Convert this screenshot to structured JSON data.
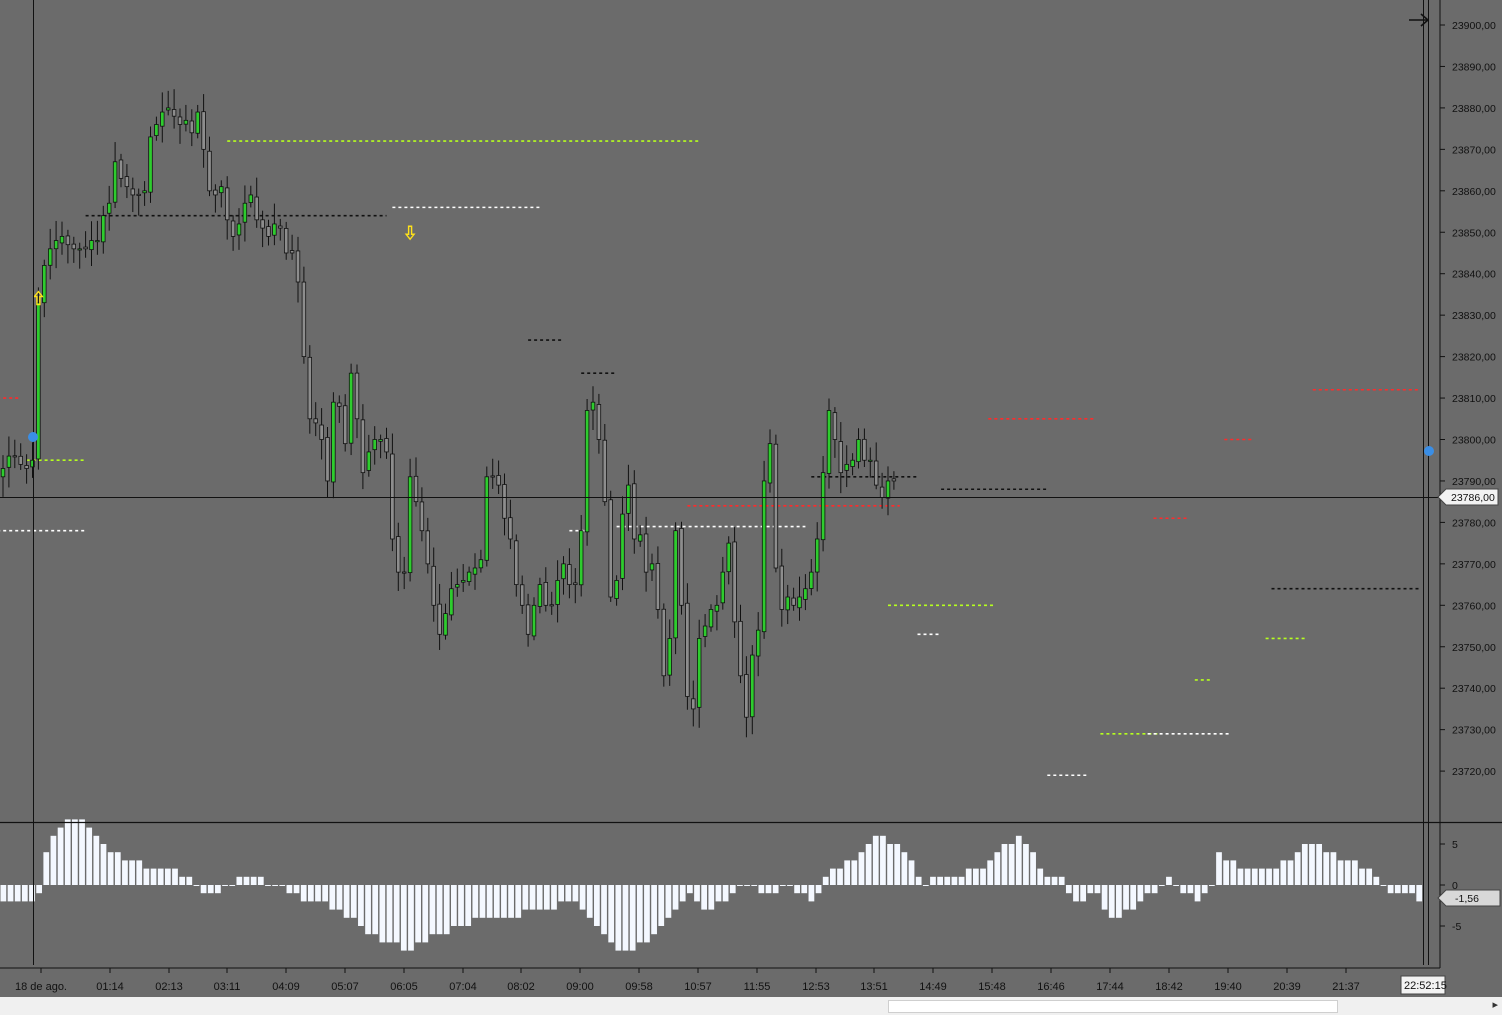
{
  "chart_data": {
    "type": "candlestick",
    "price_axis": {
      "ticks": [
        "23900,00",
        "23890,00",
        "23880,00",
        "23870,00",
        "23860,00",
        "23850,00",
        "23840,00",
        "23830,00",
        "23820,00",
        "23810,00",
        "23800,00",
        "23790,00",
        "23780,00",
        "23770,00",
        "23760,00",
        "23750,00",
        "23740,00",
        "23730,00",
        "23720,00"
      ],
      "current_price_label": "23786,00",
      "current_price": 23786
    },
    "time_axis": {
      "ticks": [
        "18 de ago.",
        "01:14",
        "02:13",
        "03:11",
        "04:09",
        "05:07",
        "06:05",
        "07:04",
        "08:02",
        "09:00",
        "09:58",
        "10:57",
        "11:55",
        "12:53",
        "13:51",
        "14:49",
        "15:48",
        "16:46",
        "17:44",
        "18:42",
        "19:40",
        "20:39",
        "21:37"
      ],
      "current_time_label": "22:52:15"
    },
    "oscillator": {
      "ticks": [
        "5",
        "0",
        "-5"
      ],
      "current_value_label": "-1,56",
      "current_value": -1.56
    },
    "candle_anchors": [
      23793,
      23796,
      23796,
      23794,
      23793,
      23795,
      23833,
      23842,
      23846,
      23848,
      23849,
      23847,
      23846,
      23846,
      23846,
      23848,
      23848,
      23854,
      23857,
      23867,
      23863,
      23861,
      23859,
      23859,
      23860,
      23873,
      23876,
      23879,
      23880,
      23878,
      23876,
      23877,
      23874,
      23879,
      23870,
      23860,
      23859,
      23861,
      23853,
      23849,
      23852,
      23857,
      23859,
      23853,
      23851,
      23849,
      23852,
      23851,
      23845,
      23845,
      23838,
      23820,
      23805,
      23804,
      23800,
      23790,
      23809,
      23808,
      23799,
      23816,
      23805,
      23792,
      23797,
      23800,
      23800,
      23797,
      23776,
      23768,
      23768,
      23791,
      23785,
      23778,
      23770,
      23760,
      23753,
      23758,
      23764,
      23765,
      23766,
      23768,
      23769,
      23771,
      23791,
      23791,
      23789,
      23781,
      23776,
      23765,
      23760,
      23753,
      23760,
      23765,
      23760,
      23760,
      23766,
      23770,
      23765,
      23765,
      23778,
      23807,
      23809,
      23800,
      23785,
      23762,
      23766,
      23782,
      23789,
      23776,
      23777,
      23768,
      23770,
      23759,
      23743,
      23752,
      23778,
      23760,
      23738,
      23735,
      23752,
      23755,
      23759,
      23760,
      23768,
      23775,
      23756,
      23743,
      23733,
      23748,
      23754,
      23790,
      23799,
      23769,
      23759,
      23762,
      23760,
      23762,
      23764,
      23768,
      23776,
      23792,
      23807,
      23800,
      23792,
      23794,
      23795,
      23800,
      23795,
      23795,
      23789,
      23786,
      23790,
      23790
    ],
    "signals": [
      {
        "type": "buy-arrow",
        "time_index": 6,
        "price": 23834
      },
      {
        "type": "sell-arrow",
        "time_index": 69,
        "price": 23850
      }
    ],
    "levels": [
      {
        "color": "red",
        "price": 23810,
        "from": -2,
        "to": 3
      },
      {
        "color": "lime",
        "price": 23795,
        "from": 4,
        "to": 14
      },
      {
        "color": "white",
        "price": 23778,
        "from": -2,
        "to": 14
      },
      {
        "color": "black",
        "price": 23854,
        "from": 14,
        "to": 65
      },
      {
        "color": "lime",
        "price": 23872,
        "from": 38,
        "to": 118
      },
      {
        "color": "white",
        "price": 23856,
        "from": 66,
        "to": 91
      },
      {
        "color": "black",
        "price": 23824,
        "from": 89,
        "to": 95
      },
      {
        "color": "black",
        "price": 23816,
        "from": 98,
        "to": 104
      },
      {
        "color": "white",
        "price": 23778,
        "from": 96,
        "to": 99
      },
      {
        "color": "white",
        "price": 23779,
        "from": 104,
        "to": 136
      },
      {
        "color": "red",
        "price": 23784,
        "from": 116,
        "to": 152
      },
      {
        "color": "black",
        "price": 23791,
        "from": 137,
        "to": 155
      },
      {
        "color": "black",
        "price": 23788,
        "from": 159,
        "to": 177
      },
      {
        "color": "red",
        "price": 23805,
        "from": 167,
        "to": 185
      },
      {
        "color": "lime",
        "price": 23760,
        "from": 150,
        "to": 168
      },
      {
        "color": "white",
        "price": 23753,
        "from": 155,
        "to": 159
      },
      {
        "color": "white",
        "price": 23719,
        "from": 177,
        "to": 184
      },
      {
        "color": "lime",
        "price": 23729,
        "from": 186,
        "to": 196
      },
      {
        "color": "white",
        "price": 23729,
        "from": 194,
        "to": 208
      },
      {
        "color": "red",
        "price": 23781,
        "from": 195,
        "to": 201
      },
      {
        "color": "lime",
        "price": 23742,
        "from": 202,
        "to": 205
      },
      {
        "color": "red",
        "price": 23800,
        "from": 207,
        "to": 212
      },
      {
        "color": "lime",
        "price": 23752,
        "from": 214,
        "to": 221
      },
      {
        "color": "black",
        "price": 23764,
        "from": 215,
        "to": 240
      },
      {
        "color": "red",
        "price": 23812,
        "from": 222,
        "to": 240
      }
    ],
    "oscillator_values": [
      -2,
      -2,
      -2,
      -2,
      -2,
      -1,
      4,
      6,
      7,
      8,
      8,
      8,
      7,
      6,
      5,
      4,
      4,
      3,
      3,
      3,
      2,
      2,
      2,
      2,
      2,
      1,
      1,
      0,
      -1,
      -1,
      -1,
      0,
      0,
      1,
      1,
      1,
      1,
      0,
      0,
      0,
      -1,
      -1,
      -2,
      -2,
      -2,
      -2,
      -3,
      -3,
      -4,
      -4,
      -5,
      -6,
      -6,
      -7,
      -7,
      -7,
      -8,
      -8,
      -7,
      -7,
      -6,
      -6,
      -6,
      -5,
      -5,
      -5,
      -4,
      -4,
      -4,
      -4,
      -4,
      -4,
      -4,
      -3,
      -3,
      -3,
      -3,
      -3,
      -2,
      -2,
      -2,
      -3,
      -4,
      -5,
      -6,
      -7,
      -8,
      -8,
      -8,
      -7,
      -7,
      -6,
      -5,
      -4,
      -3,
      -2,
      -1,
      -2,
      -3,
      -3,
      -2,
      -2,
      -1,
      0,
      0,
      0,
      -1,
      -1,
      -1,
      0,
      0,
      -1,
      -1,
      -2,
      -1,
      1,
      2,
      2,
      3,
      3,
      4,
      5,
      6,
      6,
      5,
      5,
      4,
      3,
      1,
      0,
      1,
      1,
      1,
      1,
      1,
      2,
      2,
      2,
      3,
      4,
      5,
      5,
      6,
      5,
      4,
      2,
      1,
      1,
      1,
      -1,
      -2,
      -2,
      -1,
      -1,
      -3,
      -4,
      -4,
      -3,
      -3,
      -2,
      -1,
      -1,
      0,
      1,
      0,
      -1,
      -1,
      -2,
      -1,
      0,
      4,
      3,
      3,
      2,
      2,
      2,
      2,
      2,
      2,
      3,
      3,
      4,
      5,
      5,
      5,
      4,
      4,
      3,
      3,
      3,
      2,
      2,
      1,
      0,
      -1,
      -1,
      -1,
      -1,
      -2
    ]
  }
}
